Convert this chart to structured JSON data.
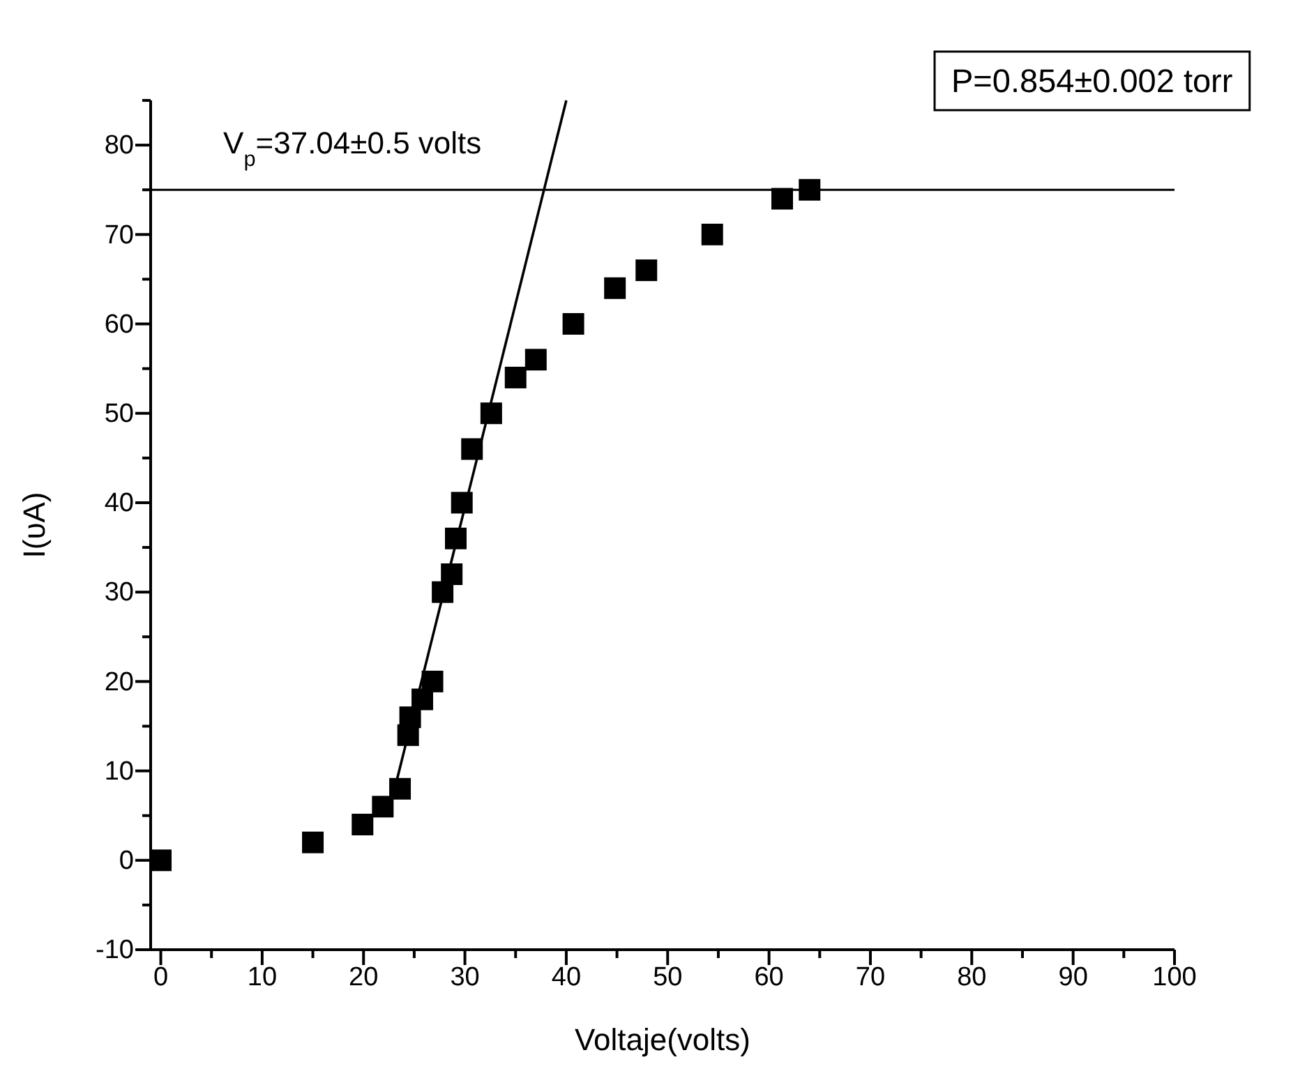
{
  "chart_data": {
    "type": "scatter",
    "xlabel": "Voltaje(volts)",
    "ylabel": "I(υA)",
    "xlim": [
      -1,
      100
    ],
    "ylim": [
      -10,
      85
    ],
    "xticks": [
      0,
      {
        "value": 5,
        "label": null
      },
      10,
      {
        "value": 15,
        "label": null
      },
      20,
      {
        "value": 25,
        "label": null
      },
      30,
      {
        "value": 35,
        "label": null
      },
      40,
      {
        "value": 45,
        "label": null
      },
      50,
      {
        "value": 55,
        "label": null
      },
      60,
      {
        "value": 65,
        "label": null
      },
      70,
      {
        "value": 75,
        "label": null
      },
      80,
      {
        "value": 85,
        "label": null
      },
      90,
      {
        "value": 95,
        "label": null
      },
      100
    ],
    "yticks": [
      -10,
      {
        "value": -5,
        "label": null
      },
      0,
      {
        "value": 5,
        "label": null
      },
      10,
      {
        "value": 15,
        "label": null
      },
      20,
      {
        "value": 25,
        "label": null
      },
      30,
      {
        "value": 35,
        "label": null
      },
      40,
      {
        "value": 45,
        "label": null
      },
      50,
      {
        "value": 55,
        "label": null
      },
      60,
      {
        "value": 65,
        "label": null
      },
      70,
      {
        "value": 75,
        "label": null
      },
      80,
      {
        "value": 85,
        "label": null
      }
    ],
    "grid": false,
    "series": [
      {
        "marker": "square",
        "color": "#000000",
        "x": [
          0,
          15.0,
          19.9,
          21.9,
          23.6,
          24.4,
          24.6,
          25.8,
          26.8,
          27.8,
          28.7,
          29.1,
          29.7,
          30.7,
          32.6,
          35.0,
          37.0,
          40.7,
          44.8,
          47.9,
          54.4,
          61.3,
          64.0
        ],
        "values": [
          0,
          2,
          4,
          6,
          8,
          14,
          16,
          18,
          20,
          30,
          32,
          36,
          40,
          46,
          50,
          54,
          56,
          60,
          64,
          66,
          70,
          74,
          75
        ]
      },
      {
        "type": "line",
        "color": "#000000",
        "x": [
          22.7,
          40.0
        ],
        "values": [
          6.3,
          85
        ]
      }
    ],
    "ref_lines": [
      {
        "axis": "y",
        "value": 75,
        "color": "#000000"
      }
    ],
    "annotations": [
      "V$_{p}$=37.04±0.5 volts",
      "P=0.854±0.002 torr"
    ]
  }
}
